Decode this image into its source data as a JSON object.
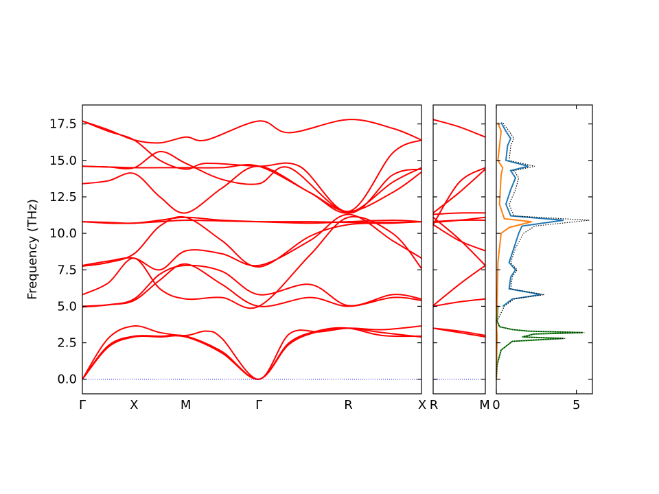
{
  "chart_data": [
    {
      "type": "line",
      "panel": "band-structure",
      "ylabel": "Frequency (THz)",
      "ylim": [
        -1.0,
        18.8
      ],
      "yticks": [
        "0.0",
        "2.5",
        "5.0",
        "7.5",
        "10.0",
        "12.5",
        "15.0",
        "17.5"
      ],
      "ytick_values": [
        0.0,
        2.5,
        5.0,
        7.5,
        10.0,
        12.5,
        15.0,
        17.5
      ],
      "xticks": [
        {
          "label": "Γ",
          "pos": 0.0
        },
        {
          "label": "X",
          "pos": 0.5
        },
        {
          "label": "M",
          "pos": 1.0
        },
        {
          "label": "Γ",
          "pos": 1.707
        },
        {
          "label": "R",
          "pos": 2.573
        },
        {
          "label": "X",
          "pos": 3.28
        }
      ],
      "band_color": "#ff0000",
      "zero_line_color": "#0000ff",
      "series": [
        {
          "x": [
            0.0,
            0.25,
            0.5,
            0.75,
            1.0,
            1.35,
            1.707,
            2.0,
            2.3,
            2.573,
            2.9,
            3.28
          ],
          "values": [
            0.0,
            2.2,
            2.9,
            2.9,
            2.9,
            1.8,
            0.0,
            2.4,
            3.3,
            3.5,
            3.2,
            2.9
          ]
        },
        {
          "x": [
            0.0,
            0.25,
            0.5,
            0.75,
            1.0,
            1.35,
            1.707,
            2.0,
            2.3,
            2.573,
            2.9,
            3.28
          ],
          "values": [
            0.0,
            2.3,
            2.95,
            2.95,
            2.95,
            1.9,
            0.0,
            2.5,
            3.35,
            3.5,
            3.0,
            2.95
          ]
        },
        {
          "x": [
            0.0,
            0.25,
            0.5,
            0.75,
            1.0,
            1.2,
            1.35,
            1.707,
            2.0,
            2.3,
            2.573,
            2.9,
            3.28
          ],
          "values": [
            0.0,
            2.8,
            3.65,
            3.2,
            3.0,
            3.3,
            2.8,
            0.0,
            3.1,
            3.25,
            3.5,
            3.4,
            3.65
          ]
        },
        {
          "x": [
            0.0,
            0.25,
            0.5,
            0.75,
            1.0,
            1.35,
            1.707,
            2.2,
            2.573,
            3.0,
            3.28
          ],
          "values": [
            5.0,
            5.1,
            5.4,
            6.8,
            7.9,
            6.5,
            5.0,
            5.6,
            5.0,
            5.6,
            5.4
          ]
        },
        {
          "x": [
            0.0,
            0.25,
            0.5,
            0.75,
            1.0,
            1.35,
            1.707,
            2.2,
            2.573,
            3.0,
            3.28
          ],
          "values": [
            4.95,
            5.1,
            5.5,
            7.2,
            7.8,
            7.4,
            5.8,
            6.5,
            5.05,
            5.8,
            5.5
          ]
        },
        {
          "x": [
            0.0,
            0.25,
            0.5,
            0.75,
            1.0,
            1.35,
            1.707,
            2.2,
            2.573,
            3.0,
            3.28
          ],
          "values": [
            5.8,
            6.6,
            8.3,
            6.2,
            5.5,
            5.6,
            5.0,
            8.5,
            11.1,
            10.0,
            7.6
          ]
        },
        {
          "x": [
            0.0,
            0.25,
            0.5,
            0.75,
            1.0,
            1.35,
            1.707,
            2.2,
            2.573,
            3.0,
            3.28
          ],
          "values": [
            7.8,
            8.1,
            8.3,
            7.5,
            8.8,
            8.6,
            7.8,
            9.5,
            11.3,
            9.5,
            8.3
          ]
        },
        {
          "x": [
            0.0,
            0.25,
            0.5,
            0.75,
            1.0,
            1.35,
            1.707,
            2.2,
            2.573,
            3.0,
            3.28
          ],
          "values": [
            7.75,
            8.0,
            8.6,
            10.5,
            11.1,
            9.5,
            7.7,
            9.8,
            10.6,
            10.7,
            10.8
          ]
        },
        {
          "x": [
            0.0,
            0.25,
            0.5,
            0.75,
            1.0,
            1.35,
            1.707,
            2.2,
            2.573,
            3.0,
            3.28
          ],
          "values": [
            10.8,
            10.7,
            10.7,
            10.8,
            10.9,
            10.85,
            10.8,
            10.8,
            10.75,
            10.75,
            10.8
          ]
        },
        {
          "x": [
            0.0,
            0.25,
            0.5,
            0.75,
            1.0,
            1.35,
            1.707,
            2.2,
            2.573,
            3.0,
            3.28
          ],
          "values": [
            10.8,
            10.75,
            10.7,
            10.9,
            11.1,
            10.9,
            10.8,
            10.7,
            10.8,
            10.9,
            10.8
          ]
        },
        {
          "x": [
            0.0,
            0.25,
            0.5,
            0.75,
            1.0,
            1.35,
            1.707,
            2.2,
            2.573,
            3.0,
            3.28
          ],
          "values": [
            13.4,
            13.6,
            14.1,
            12.5,
            11.4,
            13.1,
            14.6,
            12.8,
            11.5,
            12.8,
            14.2
          ]
        },
        {
          "x": [
            0.0,
            0.25,
            0.5,
            0.75,
            1.0,
            1.35,
            1.707,
            2.2,
            2.573,
            3.0,
            3.28
          ],
          "values": [
            14.6,
            14.55,
            14.5,
            14.5,
            14.5,
            14.5,
            14.6,
            12.8,
            11.4,
            13.5,
            14.5
          ]
        },
        {
          "x": [
            0.0,
            0.25,
            0.5,
            0.75,
            1.0,
            1.35,
            1.707,
            2.0,
            2.573,
            3.0,
            3.28
          ],
          "values": [
            14.6,
            14.55,
            14.5,
            15.6,
            14.8,
            13.7,
            13.4,
            14.5,
            11.4,
            14.0,
            14.4
          ]
        },
        {
          "x": [
            0.0,
            0.25,
            0.5,
            0.75,
            1.0,
            1.2,
            1.707,
            2.1,
            2.573,
            3.0,
            3.28
          ],
          "values": [
            17.7,
            17.0,
            16.4,
            15.0,
            14.4,
            14.8,
            14.6,
            14.6,
            11.5,
            15.5,
            16.4
          ]
        },
        {
          "x": [
            0.0,
            0.25,
            0.5,
            0.75,
            1.0,
            1.2,
            1.707,
            2.0,
            2.573,
            3.0,
            3.28
          ],
          "values": [
            17.7,
            17.1,
            16.4,
            16.2,
            16.6,
            16.4,
            17.7,
            16.9,
            17.8,
            17.2,
            16.4
          ]
        },
        {
          "x": [
            0.0,
            3.28
          ],
          "values": [
            0.0,
            0.0
          ],
          "style": "dotted-zero"
        }
      ]
    },
    {
      "type": "line",
      "panel": "band-structure-rm",
      "ylim": [
        -1.0,
        18.8
      ],
      "xticks": [
        {
          "label": "R",
          "pos": 0.0
        },
        {
          "label": "M",
          "pos": 1.0
        }
      ],
      "series": [
        {
          "x": [
            0.0,
            0.5,
            1.0
          ],
          "values": [
            3.5,
            3.2,
            2.9
          ]
        },
        {
          "x": [
            0.0,
            0.5,
            1.0
          ],
          "values": [
            3.5,
            3.3,
            3.0
          ]
        },
        {
          "x": [
            0.0,
            0.5,
            1.0
          ],
          "values": [
            5.0,
            5.3,
            5.5
          ]
        },
        {
          "x": [
            0.0,
            0.5,
            1.0
          ],
          "values": [
            5.05,
            6.5,
            7.8
          ]
        },
        {
          "x": [
            0.0,
            0.5,
            1.0
          ],
          "values": [
            11.1,
            9.6,
            7.8
          ]
        },
        {
          "x": [
            0.0,
            0.5,
            1.0
          ],
          "values": [
            10.6,
            9.5,
            8.8
          ]
        },
        {
          "x": [
            0.0,
            0.5,
            1.0
          ],
          "values": [
            10.75,
            10.9,
            11.1
          ]
        },
        {
          "x": [
            0.0,
            0.5,
            1.0
          ],
          "values": [
            10.8,
            10.9,
            10.9
          ]
        },
        {
          "x": [
            0.0,
            0.5,
            1.0
          ],
          "values": [
            11.3,
            11.4,
            11.4
          ]
        },
        {
          "x": [
            0.0,
            0.5,
            1.0
          ],
          "values": [
            11.4,
            12.8,
            14.4
          ]
        },
        {
          "x": [
            0.0,
            0.5,
            1.0
          ],
          "values": [
            10.6,
            13.5,
            14.5
          ]
        },
        {
          "x": [
            0.0,
            0.5,
            1.0
          ],
          "values": [
            17.8,
            17.3,
            16.6
          ]
        },
        {
          "x": [
            0.0,
            1.0
          ],
          "values": [
            0.0,
            0.0
          ],
          "style": "dotted-zero"
        }
      ]
    },
    {
      "type": "line",
      "panel": "dos",
      "orientation": "horizontal",
      "xlim": [
        0,
        6
      ],
      "xticks": [
        "0",
        "5"
      ],
      "xtick_values": [
        0,
        5
      ],
      "ylim": [
        -1.0,
        18.8
      ],
      "series": [
        {
          "color": "#2ca02c",
          "y": [
            0.0,
            1.0,
            2.0,
            2.6,
            2.8,
            2.9,
            3.0,
            3.1,
            3.2,
            3.3,
            3.4,
            3.6,
            4.0,
            5.0
          ],
          "values": [
            0.0,
            0.05,
            0.3,
            1.0,
            4.2,
            1.6,
            2.0,
            2.3,
            5.4,
            2.0,
            1.0,
            0.2,
            0.05,
            0.1
          ]
        },
        {
          "color": "#1f77b4",
          "y": [
            5.0,
            5.5,
            5.8,
            6.2,
            7.0,
            7.5,
            8.0,
            9.0,
            10.0,
            10.5,
            10.9,
            11.2,
            12.0,
            13.0,
            13.8,
            14.3,
            14.6,
            15.0,
            16.0,
            16.5,
            17.0,
            17.6
          ],
          "values": [
            0.4,
            1.0,
            2.8,
            0.8,
            0.9,
            1.2,
            0.8,
            1.1,
            1.4,
            1.6,
            4.2,
            0.9,
            0.6,
            0.9,
            1.2,
            0.9,
            2.0,
            0.6,
            0.7,
            0.9,
            0.6,
            0.3
          ]
        },
        {
          "color": "#ff7f0e",
          "y": [
            0.0,
            3.0,
            4.0,
            5.0,
            8.0,
            10.0,
            10.4,
            10.8,
            11.0,
            12.0,
            14.0,
            14.5,
            15.0,
            17.0,
            17.6
          ],
          "values": [
            0.0,
            0.05,
            0.0,
            0.05,
            0.1,
            0.3,
            0.8,
            2.2,
            0.5,
            0.2,
            0.3,
            0.4,
            0.1,
            0.3,
            0.1
          ]
        },
        {
          "color": "#000000",
          "style": "dotted",
          "y": [
            0.0,
            1.0,
            2.0,
            2.6,
            2.8,
            2.9,
            3.0,
            3.1,
            3.2,
            3.3,
            3.4,
            3.6,
            4.0,
            5.0,
            5.5,
            5.8,
            6.2,
            7.0,
            7.5,
            8.0,
            9.0,
            10.0,
            10.5,
            10.9,
            11.2,
            12.0,
            13.0,
            13.8,
            14.3,
            14.6,
            15.0,
            16.0,
            16.5,
            17.0,
            17.6
          ],
          "values": [
            0.0,
            0.05,
            0.3,
            1.0,
            4.3,
            1.7,
            2.1,
            2.4,
            5.5,
            2.1,
            1.1,
            0.2,
            0.05,
            0.5,
            1.1,
            3.0,
            0.9,
            1.0,
            1.3,
            0.9,
            1.2,
            1.7,
            2.4,
            5.8,
            1.1,
            0.8,
            1.2,
            1.4,
            1.1,
            2.4,
            0.8,
            0.9,
            1.1,
            0.8,
            0.4
          ]
        }
      ]
    }
  ]
}
